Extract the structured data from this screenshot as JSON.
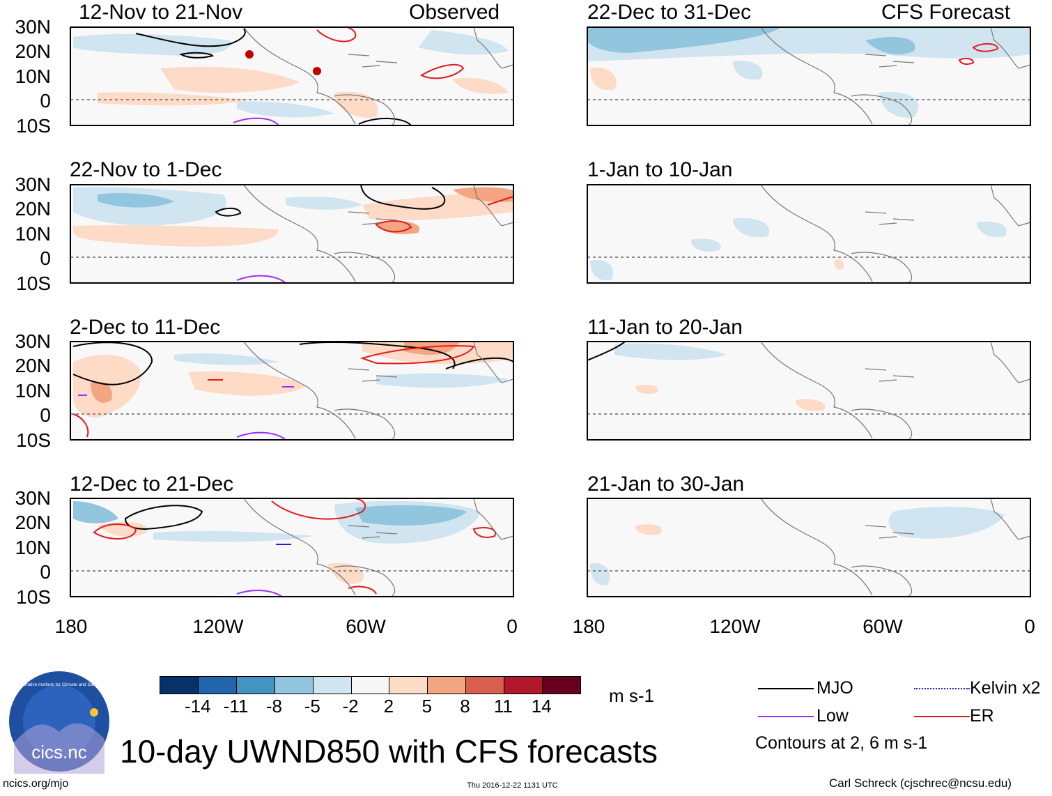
{
  "colors": {
    "blue_dark": "#08306b",
    "blue_mid": "#2166ac",
    "blue_light": "#6baed6",
    "blue_pale": "#c6dbef",
    "red_pale": "#fcd5c3",
    "red_light": "#f4a582",
    "red_mid": "#d6604d",
    "red_dark": "#67001f",
    "mjo": "#000000",
    "low": "#9b30ff",
    "kelvin": "#1c1cff",
    "er": "#e31a1c"
  },
  "panels": {
    "p1": {
      "title": "12-Nov to 21-Nov",
      "tag": "Observed"
    },
    "p2": {
      "title": "22-Nov to 1-Dec",
      "tag": ""
    },
    "p3": {
      "title": "2-Dec to 11-Dec",
      "tag": ""
    },
    "p4": {
      "title": "12-Dec to 21-Dec",
      "tag": ""
    },
    "p5": {
      "title": "22-Dec to 31-Dec",
      "tag": "CFS Forecast"
    },
    "p6": {
      "title": "1-Jan to 10-Jan",
      "tag": ""
    },
    "p7": {
      "title": "11-Jan to 20-Jan",
      "tag": ""
    },
    "p8": {
      "title": "21-Jan to 30-Jan",
      "tag": ""
    }
  },
  "axes": {
    "lat_labels": [
      "30N",
      "20N",
      "10N",
      "0",
      "10S"
    ],
    "lon_labels": [
      "180",
      "120W",
      "60W",
      "0"
    ]
  },
  "colorbar": {
    "ticks": [
      "-14",
      "-11",
      "-8",
      "-5",
      "-2",
      "2",
      "5",
      "8",
      "11",
      "14"
    ],
    "colors": [
      "#08306b",
      "#2166ac",
      "#4393c3",
      "#92c5de",
      "#d1e5f0",
      "#f7f7f7",
      "#fddbc7",
      "#f4a582",
      "#d6604d",
      "#b2182b",
      "#67001f"
    ],
    "units": "m s-1"
  },
  "legend": {
    "mjo": "MJO",
    "kelvin": "Kelvin x2",
    "low": "Low",
    "er": "ER",
    "contours": "Contours at 2, 6 m s-1"
  },
  "logo": {
    "text": "cics.nc",
    "ring": "Cooperative Institute for Climate and Satellites"
  },
  "footer": {
    "main_title": "10-day UWND850 with CFS forecasts",
    "url": "ncics.org/mjo",
    "timestamp": "Thu 2016-12-22 1131 UTC",
    "author": "Carl Schreck (cjschrec@ncsu.edu)"
  }
}
